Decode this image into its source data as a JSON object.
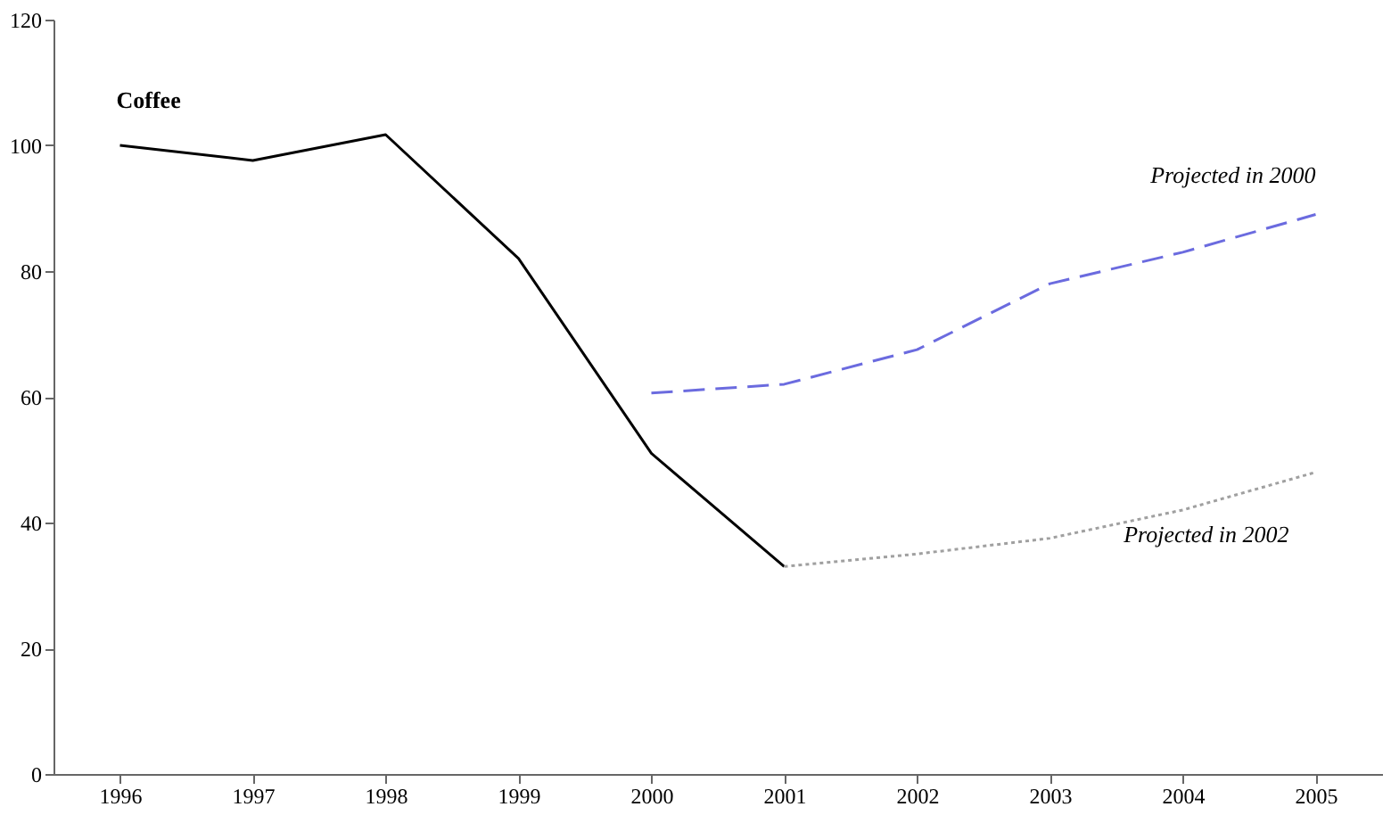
{
  "chart_data": {
    "type": "line",
    "categories": [
      "1996",
      "1997",
      "1998",
      "1999",
      "2000",
      "2001",
      "2002",
      "2003",
      "2004",
      "2005"
    ],
    "series": [
      {
        "name": "Coffee",
        "color": "#000000",
        "line_style": "solid",
        "values": [
          100,
          97.6,
          101.7,
          82,
          51,
          33,
          null,
          null,
          null,
          null
        ]
      },
      {
        "name": "Projected in 2000",
        "color": "#6b6bdf",
        "line_style": "dashed",
        "values": [
          null,
          null,
          null,
          null,
          60.6,
          62,
          67.5,
          78,
          83,
          89
        ]
      },
      {
        "name": "Projected in 2002",
        "color": "#a0a0a0",
        "line_style": "dotted",
        "values": [
          null,
          null,
          null,
          null,
          null,
          33,
          35,
          37.5,
          42,
          48
        ]
      }
    ],
    "ylim": [
      0,
      120
    ],
    "yticks": [
      0,
      20,
      40,
      60,
      80,
      100,
      120
    ]
  }
}
